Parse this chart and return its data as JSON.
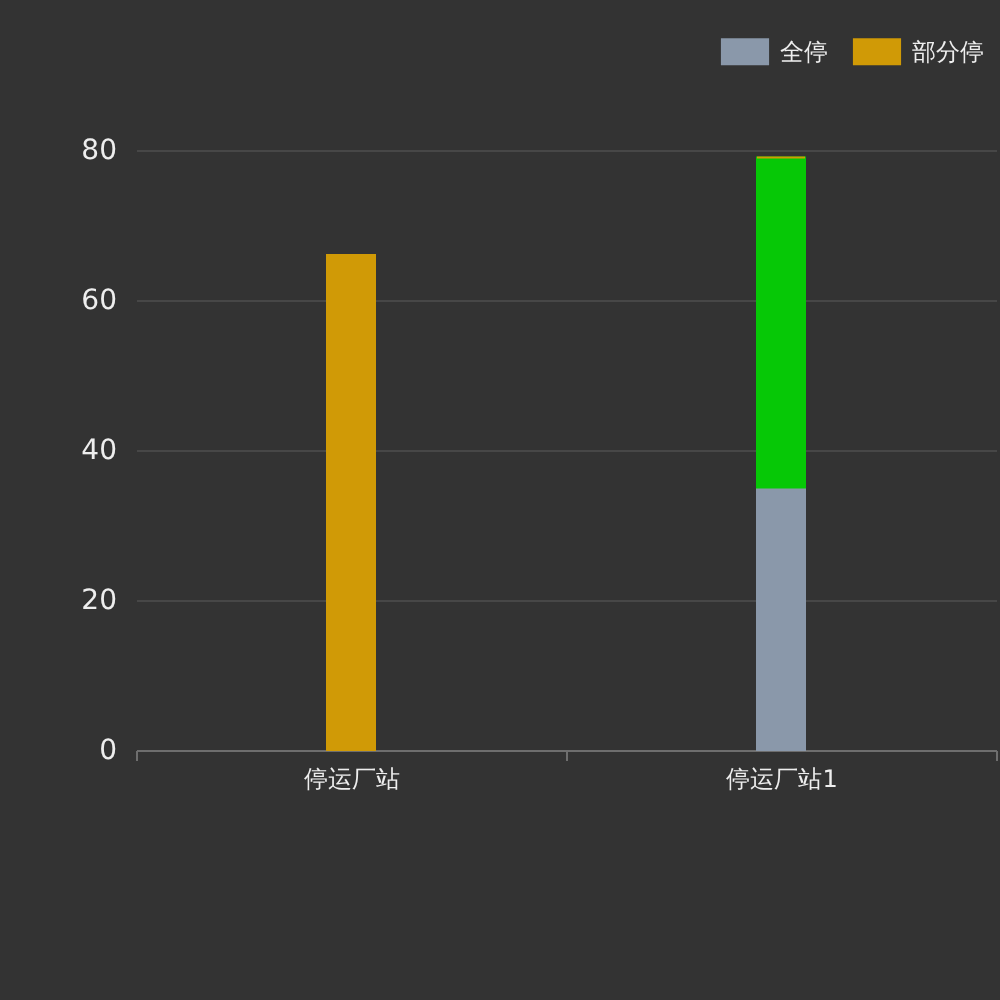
{
  "chart_data": {
    "type": "bar",
    "categories": [
      "停运厂站",
      "停运厂站1"
    ],
    "series": [
      {
        "name": "全停",
        "color": "#8a98aa",
        "values": [
          0,
          35
        ]
      },
      {
        "color": "#06c806",
        "values": [
          0,
          44
        ]
      },
      {
        "name": "部分停",
        "color": "#d09a06",
        "values": [
          66,
          0
        ]
      }
    ],
    "stacked": true,
    "ylim": [
      0,
      80
    ],
    "yticks": [
      0,
      20,
      40,
      60,
      80
    ],
    "grid": "y",
    "legend": "top right"
  }
}
